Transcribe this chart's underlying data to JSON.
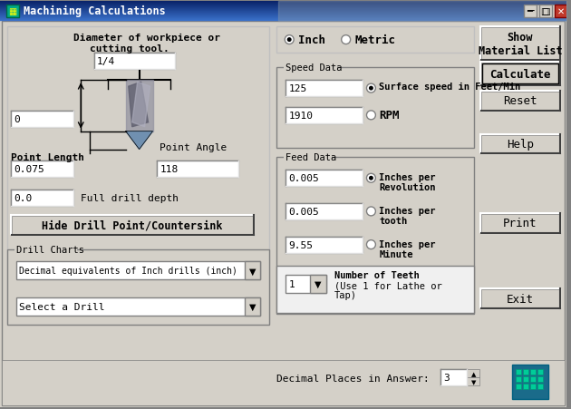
{
  "title": "Machining Calculations",
  "bg_color": "#d4d0c8",
  "titlebar_color": "#0a246a",
  "titlebar_text_color": "#ffffff",
  "window_bg": "#d4d0c8",
  "field_bg": "#ffffff",
  "field_border": "#808080",
  "button_bg": "#d4d0c8",
  "groupbox_border": "#808080",
  "fields": {
    "diameter": "1/4",
    "point_angle_val": "0",
    "point_angle_deg": "118",
    "point_length": "0.075",
    "full_drill_depth": "0.0",
    "surface_speed": "125",
    "rpm": "1910",
    "feed_revolution": "0.005",
    "feed_tooth": "0.005",
    "feed_minute": "9.55",
    "num_teeth": "1",
    "decimal_places": "3"
  }
}
